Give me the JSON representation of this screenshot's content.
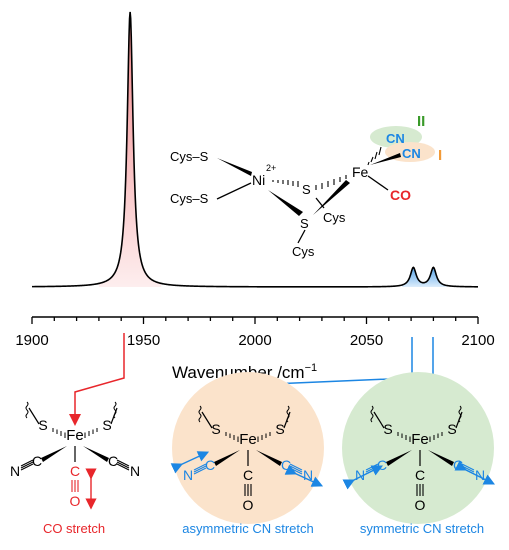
{
  "axis": {
    "label": "Wavenumber /cm",
    "label_superscript": "−1",
    "ticks": [
      "1900",
      "1950",
      "2000",
      "2050",
      "2100"
    ]
  },
  "spectrum": {
    "peaks": [
      {
        "name": "CO",
        "position": 1944,
        "color": "#e8262b"
      },
      {
        "name": "CN-asym",
        "position": 2071,
        "color": "#1c86e3"
      },
      {
        "name": "CN-sym",
        "position": 2080,
        "color": "#1c86e3"
      }
    ]
  },
  "structure": {
    "labels": {
      "cys_s_1": "Cys–S",
      "cys_s_2": "Cys–S",
      "ni": "Ni",
      "ni_charge": "2+",
      "s_upper": "S",
      "s_lower": "S",
      "cys_right": "Cys",
      "cys_bottom": "Cys",
      "fe": "Fe",
      "cn_1": "CN",
      "cn_2": "CN",
      "co": "CO",
      "ligand_II": "II",
      "ligand_I": "I"
    }
  },
  "complex_labels": {
    "s_left": "S",
    "s_right": "S",
    "fe": "Fe",
    "c_left": "C",
    "n_left": "N",
    "c_right": "C",
    "n_right": "N",
    "c_bottom": "C",
    "o_bottom": "O"
  },
  "modes": [
    {
      "name": "CO stretch",
      "color": "#e8262b"
    },
    {
      "name": "asymmetric CN stretch",
      "color": "#1c86e3"
    },
    {
      "name": "symmetric CN stretch",
      "color": "#1c86e3"
    }
  ],
  "colors": {
    "co_red": "#e8262b",
    "cn_blue": "#1c86e3",
    "orange_bg": "#fbe3cb",
    "green_bg": "#d6ead0",
    "label_green": "#3a9a2a",
    "label_orange": "#f29a38"
  }
}
